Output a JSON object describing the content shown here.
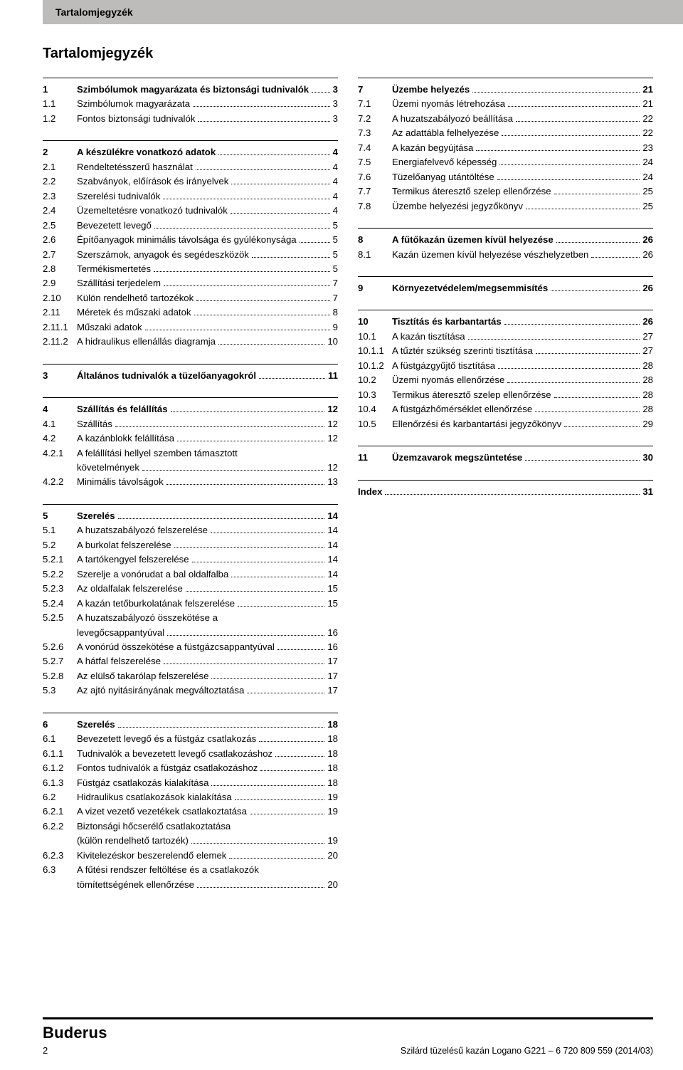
{
  "header": {
    "running_title": "Tartalomjegyzék",
    "main_title": "Tartalomjegyzék"
  },
  "footer": {
    "brand": "Buderus",
    "doc_info": "Szilárd tüzelésű kazán Logano G221 – 6 720 809 559 (2014/03)",
    "page_number": "2"
  },
  "left": [
    {
      "type": "section",
      "rows": [
        {
          "num": "1",
          "title": "Szimbólumok magyarázata és biztonsági tudnivalók",
          "page": "3",
          "bold": true
        },
        {
          "num": "1.1",
          "title": "Szimbólumok magyarázata",
          "page": "3"
        },
        {
          "num": "1.2",
          "title": "Fontos biztonsági tudnivalók",
          "page": "3"
        }
      ]
    },
    {
      "type": "section",
      "rows": [
        {
          "num": "2",
          "title": "A készülékre vonatkozó adatok",
          "page": "4",
          "bold": true
        },
        {
          "num": "2.1",
          "title": "Rendeltetésszerű használat",
          "page": "4"
        },
        {
          "num": "2.2",
          "title": "Szabványok, előírások és irányelvek",
          "page": "4"
        },
        {
          "num": "2.3",
          "title": "Szerelési tudnivalók",
          "page": "4"
        },
        {
          "num": "2.4",
          "title": "Üzemeltetésre vonatkozó tudnivalók",
          "page": "4"
        },
        {
          "num": "2.5",
          "title": "Bevezetett levegő",
          "page": "5"
        },
        {
          "num": "2.6",
          "title": "Építőanyagok minimális távolsága és gyúlékonysága",
          "page": "5"
        },
        {
          "num": "2.7",
          "title": "Szerszámok, anyagok és segédeszközök",
          "page": "5"
        },
        {
          "num": "2.8",
          "title": "Termékismertetés",
          "page": "5"
        },
        {
          "num": "2.9",
          "title": "Szállítási terjedelem",
          "page": "7"
        },
        {
          "num": "2.10",
          "title": "Külön rendelhető tartozékok",
          "page": "7"
        },
        {
          "num": "2.11",
          "title": "Méretek és műszaki adatok",
          "page": "8"
        },
        {
          "num": "2.11.1",
          "title": "Műszaki adatok",
          "page": "9"
        },
        {
          "num": "2.11.2",
          "title": "A hidraulikus ellenállás diagramja",
          "page": "10"
        }
      ]
    },
    {
      "type": "section",
      "rows": [
        {
          "num": "3",
          "title": "Általános tudnivalók a tüzelőanyagokról",
          "page": "11",
          "bold": true
        }
      ]
    },
    {
      "type": "section",
      "rows": [
        {
          "num": "4",
          "title": "Szállítás és felállítás",
          "page": "12",
          "bold": true
        },
        {
          "num": "4.1",
          "title": "Szállítás",
          "page": "12"
        },
        {
          "num": "4.2",
          "title": "A kazánblokk felállítása",
          "page": "12"
        },
        {
          "num": "4.2.1",
          "title": "A felállítási hellyel szemben támasztott",
          "title2": "követelmények",
          "page": "12"
        },
        {
          "num": "4.2.2",
          "title": "Minimális távolságok",
          "page": "13"
        }
      ]
    },
    {
      "type": "section",
      "rows": [
        {
          "num": "5",
          "title": "Szerelés",
          "page": "14",
          "bold": true
        },
        {
          "num": "5.1",
          "title": "A huzatszabályozó felszerelése",
          "page": "14"
        },
        {
          "num": "5.2",
          "title": "A burkolat felszerelése",
          "page": "14"
        },
        {
          "num": "5.2.1",
          "title": "A tartókengyel felszerelése",
          "page": "14"
        },
        {
          "num": "5.2.2",
          "title": "Szerelje a vonórudat a bal oldalfalba",
          "page": "14"
        },
        {
          "num": "5.2.3",
          "title": "Az oldalfalak felszerelése",
          "page": "15"
        },
        {
          "num": "5.2.4",
          "title": "A kazán tetőburkolatának felszerelése",
          "page": "15"
        },
        {
          "num": "5.2.5",
          "title": "A huzatszabályozó összekötése a",
          "title2": "levegőcsappantyúval",
          "page": "16"
        },
        {
          "num": "5.2.6",
          "title": "A vonórúd összekötése a füstgázcsappantyúval",
          "page": "16"
        },
        {
          "num": "5.2.7",
          "title": "A hátfal felszerelése",
          "page": "17"
        },
        {
          "num": "5.2.8",
          "title": "Az elülső takarólap felszerelése",
          "page": "17"
        },
        {
          "num": "5.3",
          "title": "Az ajtó nyitásirányának megváltoztatása",
          "page": "17"
        }
      ]
    },
    {
      "type": "section",
      "rows": [
        {
          "num": "6",
          "title": "Szerelés",
          "page": "18",
          "bold": true
        },
        {
          "num": "6.1",
          "title": "Bevezetett levegő és a füstgáz csatlakozás",
          "page": "18"
        },
        {
          "num": "6.1.1",
          "title": "Tudnivalók a bevezetett levegő csatlakozáshoz",
          "page": "18"
        },
        {
          "num": "6.1.2",
          "title": "Fontos tudnivalók a füstgáz csatlakozáshoz",
          "page": "18"
        },
        {
          "num": "6.1.3",
          "title": "Füstgáz csatlakozás kialakítása",
          "page": "18"
        },
        {
          "num": "6.2",
          "title": "Hidraulikus csatlakozások kialakítása",
          "page": "19"
        },
        {
          "num": "6.2.1",
          "title": "A vizet vezető vezetékek csatlakoztatása",
          "page": "19"
        },
        {
          "num": "6.2.2",
          "title": "Biztonsági hőcserélő csatlakoztatása",
          "title2": "(külön rendelhető tartozék)",
          "page": "19"
        },
        {
          "num": "6.2.3",
          "title": "Kivitelezéskor beszerelendő elemek",
          "page": "20"
        },
        {
          "num": "6.3",
          "title": "A fűtési rendszer feltöltése és a csatlakozók",
          "title2": "tömítettségének ellenőrzése",
          "page": "20"
        }
      ]
    }
  ],
  "right": [
    {
      "type": "section",
      "rows": [
        {
          "num": "7",
          "title": "Üzembe helyezés",
          "page": "21",
          "bold": true
        },
        {
          "num": "7.1",
          "title": "Üzemi nyomás létrehozása",
          "page": "21"
        },
        {
          "num": "7.2",
          "title": "A huzatszabályozó beállítása",
          "page": "22"
        },
        {
          "num": "7.3",
          "title": "Az adattábla felhelyezése",
          "page": "22"
        },
        {
          "num": "7.4",
          "title": "A kazán begyújtása",
          "page": "23"
        },
        {
          "num": "7.5",
          "title": "Energiafelvevő képesség",
          "page": "24"
        },
        {
          "num": "7.6",
          "title": "Tüzelőanyag utántöltése",
          "page": "24"
        },
        {
          "num": "7.7",
          "title": "Termikus áteresztő szelep ellenőrzése",
          "page": "25"
        },
        {
          "num": "7.8",
          "title": "Üzembe helyezési jegyzőkönyv",
          "page": "25"
        }
      ]
    },
    {
      "type": "section",
      "rows": [
        {
          "num": "8",
          "title": "A fűtőkazán üzemen kívül helyezése",
          "page": "26",
          "bold": true
        },
        {
          "num": "8.1",
          "title": "Kazán üzemen kívül helyezése vészhelyzetben",
          "page": "26"
        }
      ]
    },
    {
      "type": "section",
      "rows": [
        {
          "num": "9",
          "title": "Környezetvédelem/megsemmisítés",
          "page": "26",
          "bold": true
        }
      ]
    },
    {
      "type": "section",
      "rows": [
        {
          "num": "10",
          "title": "Tisztítás és karbantartás",
          "page": "26",
          "bold": true
        },
        {
          "num": "10.1",
          "title": "A kazán tisztítása",
          "page": "27"
        },
        {
          "num": "10.1.1",
          "title": "A tűztér szükség szerinti tisztítása",
          "page": "27"
        },
        {
          "num": "10.1.2",
          "title": "A füstgázgyűjtő tisztítása",
          "page": "28"
        },
        {
          "num": "10.2",
          "title": "Üzemi nyomás ellenőrzése",
          "page": "28"
        },
        {
          "num": "10.3",
          "title": "Termikus áteresztő szelep ellenőrzése",
          "page": "28"
        },
        {
          "num": "10.4",
          "title": "A füstgázhőmérséklet ellenőrzése",
          "page": "28"
        },
        {
          "num": "10.5",
          "title": "Ellenőrzési és karbantartási jegyzőkönyv",
          "page": "29"
        }
      ]
    },
    {
      "type": "section",
      "rows": [
        {
          "num": "11",
          "title": "Üzemzavarok megszüntetése",
          "page": "30",
          "bold": true
        }
      ]
    },
    {
      "type": "section",
      "rows": [
        {
          "num": "",
          "title": "Index",
          "page": "31",
          "bold": true,
          "nonum": true
        }
      ]
    }
  ]
}
